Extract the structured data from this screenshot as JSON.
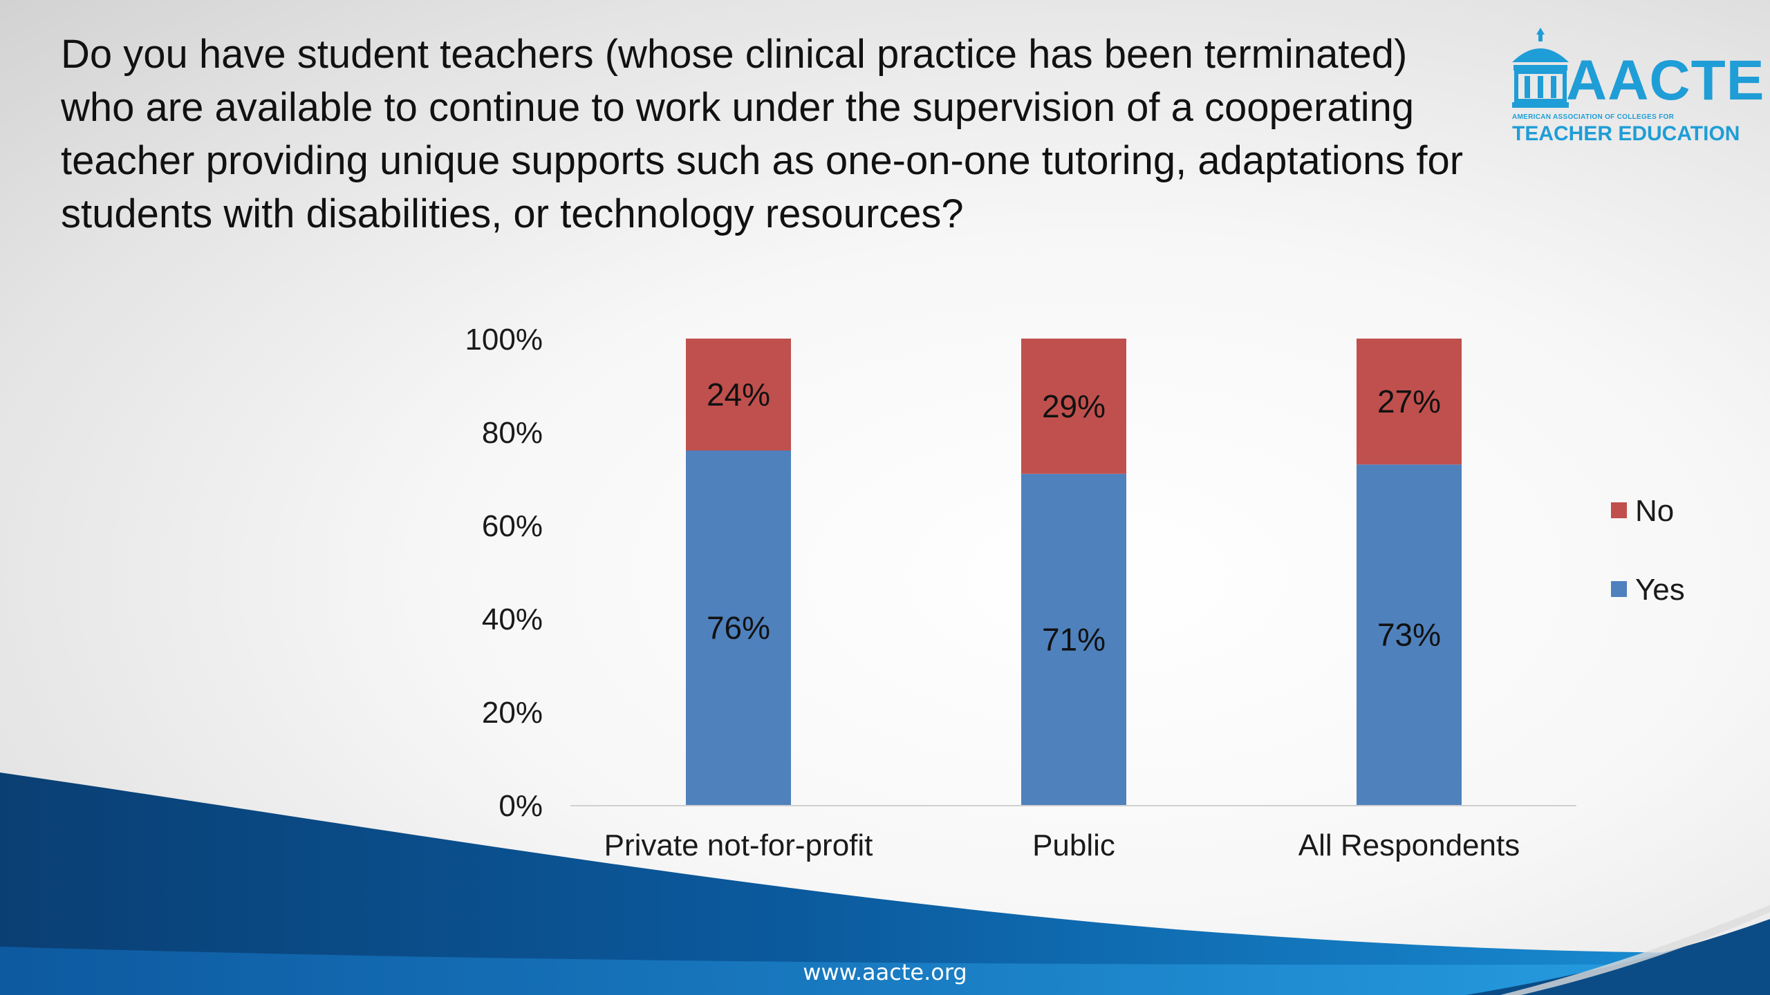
{
  "slide": {
    "question": "Do you have student teachers (whose clinical practice has been terminated) who are available to continue to work under the supervision of a cooperating teacher providing unique supports such as one-on-one tutoring, adaptations for students with disabilities, or technology resources?",
    "logo_name": "AACTE",
    "logo_subtitle": "AMERICAN ASSOCIATION OF COLLEGES FOR",
    "logo_subtitle2": "TEACHER EDUCATION",
    "logo_icon": "schoolhouse-icon",
    "footer_url": "www.aacte.org"
  },
  "colors": {
    "yes": "#4f81bd",
    "no": "#c0504d",
    "brand": "#1f9dd6",
    "wave_dark": "#0b4c86"
  },
  "chart_data": {
    "type": "bar",
    "stacked": true,
    "categories": [
      "Private not-for-profit",
      "Public",
      "All Respondents"
    ],
    "series": [
      {
        "name": "Yes",
        "values": [
          76,
          71,
          73
        ],
        "labels": [
          "76%",
          "71%",
          "73%"
        ]
      },
      {
        "name": "No",
        "values": [
          24,
          29,
          27
        ],
        "labels": [
          "24%",
          "29%",
          "27%"
        ]
      }
    ],
    "ylim": [
      0,
      100
    ],
    "yticks": [
      "0%",
      "20%",
      "40%",
      "60%",
      "80%",
      "100%"
    ],
    "legend": [
      "No",
      "Yes"
    ],
    "legend_position": "right",
    "grid": false
  }
}
